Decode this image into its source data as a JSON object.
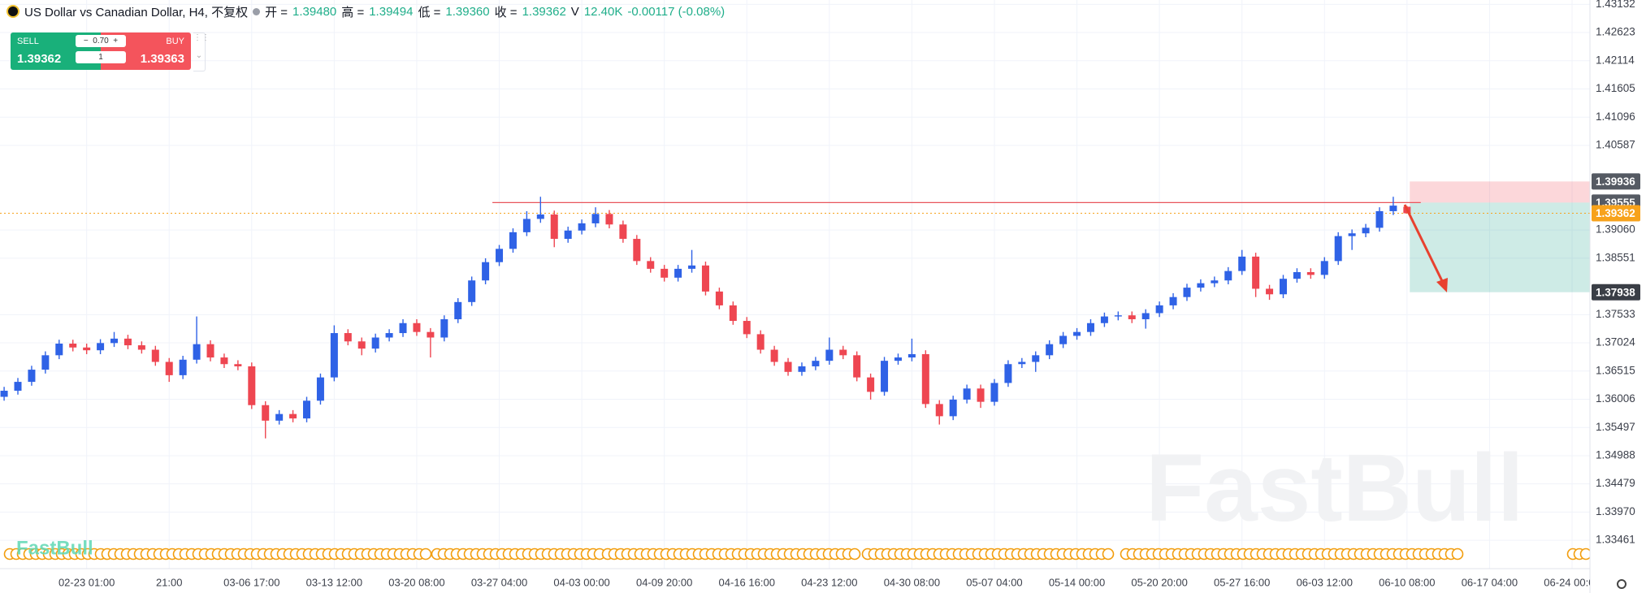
{
  "header": {
    "symbol": "US Dollar vs Canadian Dollar, H4, 不复权",
    "open_label": "开 =",
    "open": "1.39480",
    "high_label": "高 =",
    "high": "1.39494",
    "low_label": "低 =",
    "low": "1.39360",
    "close_label": "收 =",
    "close": "1.39362",
    "volume_label": "V",
    "volume": "12.40K",
    "change": "-0.00117 (-0.08%)"
  },
  "trade": {
    "sell_label": "SELL",
    "sell_price": "1.39362",
    "buy_label": "BUY",
    "buy_price": "1.39363",
    "lot": "0.70",
    "quantity": "1"
  },
  "watermark": "FastBull",
  "logo": "FastBull",
  "chart_data": {
    "type": "candlestick",
    "open": [
      1.3605,
      1.3616,
      1.3632,
      1.3654,
      1.368,
      1.3701,
      1.3694,
      1.3689,
      1.3702,
      1.371,
      1.3698,
      1.369,
      1.3668,
      1.3644,
      1.3672,
      1.37,
      1.3676,
      1.3664,
      1.366,
      1.359,
      1.3562,
      1.3574,
      1.3566,
      1.3598,
      1.364,
      1.372,
      1.3705,
      1.3692,
      1.3712,
      1.372,
      1.3738,
      1.3722,
      1.3712,
      1.3745,
      1.3776,
      1.3815,
      1.3848,
      1.3872,
      1.3902,
      1.3926,
      1.3934,
      1.389,
      1.3905,
      1.3918,
      1.3935,
      1.3916,
      1.389,
      1.385,
      1.3836,
      1.382,
      1.3836,
      1.3842,
      1.3795,
      1.377,
      1.3742,
      1.3718,
      1.369,
      1.3668,
      1.365,
      1.366,
      1.367,
      1.369,
      1.368,
      1.364,
      1.3614,
      1.367,
      1.3676,
      1.3682,
      1.3592,
      1.357,
      1.36,
      1.362,
      1.3596,
      1.363,
      1.3664,
      1.3668,
      1.368,
      1.37,
      1.3715,
      1.3722,
      1.3738,
      1.375,
      1.3752,
      1.3745,
      1.3756,
      1.377,
      1.3785,
      1.3802,
      1.381,
      1.3815,
      1.3832,
      1.3858,
      1.38,
      1.379,
      1.3818,
      1.383,
      1.3825,
      1.385,
      1.3895,
      1.39,
      1.391,
      1.394,
      1.3948
    ],
    "high": [
      1.3623,
      1.3639,
      1.3661,
      1.3687,
      1.3708,
      1.3708,
      1.3701,
      1.3709,
      1.3722,
      1.3717,
      1.3705,
      1.3697,
      1.3675,
      1.3679,
      1.375,
      1.3707,
      1.3683,
      1.3671,
      1.3667,
      1.3597,
      1.3581,
      1.3581,
      1.3605,
      1.3647,
      1.3734,
      1.3727,
      1.3712,
      1.3719,
      1.3727,
      1.3745,
      1.3745,
      1.3729,
      1.3752,
      1.3783,
      1.3822,
      1.3855,
      1.3879,
      1.3909,
      1.394,
      1.3966,
      1.3941,
      1.3912,
      1.3925,
      1.3947,
      1.3942,
      1.3923,
      1.3897,
      1.3857,
      1.3843,
      1.3843,
      1.387,
      1.3849,
      1.3802,
      1.3777,
      1.3749,
      1.3725,
      1.3697,
      1.3675,
      1.3667,
      1.3677,
      1.3712,
      1.3697,
      1.3687,
      1.3647,
      1.3677,
      1.3683,
      1.371,
      1.3689,
      1.3599,
      1.3607,
      1.3627,
      1.3627,
      1.3637,
      1.3671,
      1.3675,
      1.3687,
      1.3707,
      1.3722,
      1.3729,
      1.3745,
      1.3757,
      1.3759,
      1.3759,
      1.3763,
      1.3777,
      1.3792,
      1.3809,
      1.3817,
      1.3822,
      1.3839,
      1.387,
      1.3865,
      1.3807,
      1.3825,
      1.3837,
      1.3837,
      1.3857,
      1.3902,
      1.3907,
      1.3917,
      1.3947,
      1.3966,
      1.39494
    ],
    "low": [
      1.3598,
      1.3609,
      1.3625,
      1.3647,
      1.3673,
      1.3687,
      1.3682,
      1.3682,
      1.3695,
      1.3691,
      1.3683,
      1.3661,
      1.3632,
      1.3637,
      1.3665,
      1.3669,
      1.3657,
      1.3653,
      1.3583,
      1.353,
      1.3555,
      1.3559,
      1.3559,
      1.3591,
      1.3633,
      1.3698,
      1.368,
      1.3685,
      1.3705,
      1.3713,
      1.3715,
      1.3676,
      1.3705,
      1.3738,
      1.3769,
      1.3808,
      1.3841,
      1.3865,
      1.3895,
      1.3919,
      1.3875,
      1.3883,
      1.3898,
      1.3911,
      1.3909,
      1.3883,
      1.3843,
      1.3829,
      1.3813,
      1.3813,
      1.3829,
      1.3788,
      1.3763,
      1.3735,
      1.3711,
      1.3683,
      1.3661,
      1.3643,
      1.3643,
      1.3653,
      1.3663,
      1.3673,
      1.3633,
      1.36,
      1.3607,
      1.3663,
      1.3669,
      1.3585,
      1.3555,
      1.3563,
      1.3593,
      1.3585,
      1.3589,
      1.3623,
      1.3657,
      1.365,
      1.3673,
      1.3693,
      1.3708,
      1.3715,
      1.3731,
      1.3743,
      1.3738,
      1.3728,
      1.3749,
      1.3763,
      1.3778,
      1.3795,
      1.3803,
      1.3808,
      1.3825,
      1.3785,
      1.378,
      1.3783,
      1.3811,
      1.3818,
      1.3818,
      1.3843,
      1.387,
      1.3893,
      1.3903,
      1.3933,
      1.3936
    ],
    "close": [
      1.3616,
      1.3632,
      1.3654,
      1.368,
      1.3701,
      1.3694,
      1.3689,
      1.3702,
      1.371,
      1.3698,
      1.369,
      1.3668,
      1.3644,
      1.3672,
      1.37,
      1.3676,
      1.3664,
      1.366,
      1.359,
      1.3562,
      1.3574,
      1.3566,
      1.3598,
      1.364,
      1.372,
      1.3705,
      1.3692,
      1.3712,
      1.372,
      1.3738,
      1.3722,
      1.3712,
      1.3745,
      1.3776,
      1.3815,
      1.3848,
      1.3872,
      1.3902,
      1.3926,
      1.3934,
      1.389,
      1.3905,
      1.3918,
      1.3935,
      1.3916,
      1.389,
      1.385,
      1.3836,
      1.382,
      1.3836,
      1.3842,
      1.3795,
      1.377,
      1.3742,
      1.3718,
      1.369,
      1.3668,
      1.365,
      1.366,
      1.367,
      1.369,
      1.368,
      1.364,
      1.3614,
      1.367,
      1.3676,
      1.3682,
      1.3592,
      1.357,
      1.36,
      1.362,
      1.3596,
      1.363,
      1.3664,
      1.3668,
      1.368,
      1.37,
      1.3715,
      1.3722,
      1.3738,
      1.375,
      1.3752,
      1.3745,
      1.3756,
      1.377,
      1.3785,
      1.3802,
      1.381,
      1.3815,
      1.3832,
      1.3858,
      1.38,
      1.379,
      1.3818,
      1.383,
      1.3825,
      1.385,
      1.3895,
      1.39,
      1.391,
      1.394,
      1.395,
      1.39362
    ],
    "xlim": [
      -0.3,
      115.3
    ],
    "xticks": [
      {
        "value": 6,
        "label": "02-23 01:00"
      },
      {
        "value": 12,
        "label": "21:00"
      },
      {
        "value": 18,
        "label": "03-06 17:00"
      },
      {
        "value": 24,
        "label": "03-13 12:00"
      },
      {
        "value": 30,
        "label": "03-20 08:00"
      },
      {
        "value": 36,
        "label": "03-27 04:00"
      },
      {
        "value": 42,
        "label": "04-03 00:00"
      },
      {
        "value": 48,
        "label": "04-09 20:00"
      },
      {
        "value": 54,
        "label": "04-16 16:00"
      },
      {
        "value": 60,
        "label": "04-23 12:00"
      },
      {
        "value": 66,
        "label": "04-30 08:00"
      },
      {
        "value": 72,
        "label": "05-07 04:00"
      },
      {
        "value": 78,
        "label": "05-14 00:00"
      },
      {
        "value": 84,
        "label": "05-20 20:00"
      },
      {
        "value": 90,
        "label": "05-27 16:00"
      },
      {
        "value": 96,
        "label": "06-03 12:00"
      },
      {
        "value": 102,
        "label": "06-10 08:00"
      },
      {
        "value": 108,
        "label": "06-17 04:00"
      },
      {
        "value": 114,
        "label": "06-24 00:00"
      }
    ],
    "ylim": [
      1.3295,
      1.4321
    ],
    "yticks": [
      1.43132,
      1.42623,
      1.42114,
      1.41605,
      1.41096,
      1.40587,
      {
        "value": 1.3906,
        "label": "1.39060"
      },
      1.38551,
      1.37533,
      1.37024,
      1.36515,
      1.36006,
      1.35497,
      1.34988,
      1.34479,
      {
        "value": 1.3397,
        "label": "1.33970"
      },
      1.33461
    ],
    "grid": true,
    "up_color": "#2f62e6",
    "down_color": "#ee4651",
    "last_price": 1.39362,
    "last_price_color": "#f7a21b",
    "position": {
      "stop": 1.39936,
      "entry": 1.39555,
      "target": 1.37938
    }
  }
}
